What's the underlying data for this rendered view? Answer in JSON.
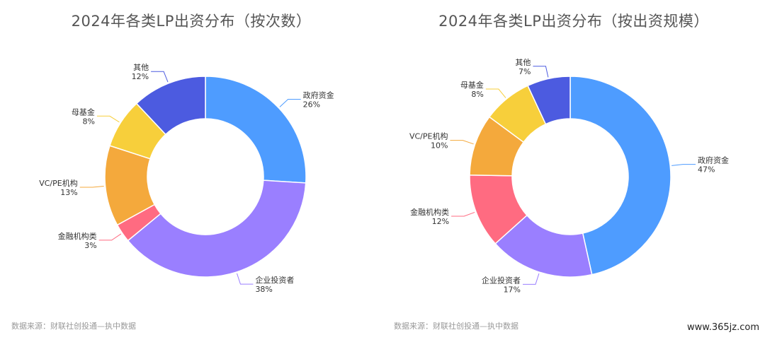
{
  "chart_data": [
    {
      "type": "pie",
      "title": "2024年各类LP出资分布（按次数）",
      "source": "数据来源：财联社创投通—执中数据",
      "slices": [
        {
          "name": "政府资金",
          "value": 26,
          "label": "26%",
          "color": "#4e9cff"
        },
        {
          "name": "企业投资者",
          "value": 38,
          "label": "38%",
          "color": "#9a7fff"
        },
        {
          "name": "金融机构类",
          "value": 3,
          "label": "3%",
          "color": "#ff6b81"
        },
        {
          "name": "VC/PE机构",
          "value": 13,
          "label": "13%",
          "color": "#f4a93c"
        },
        {
          "name": "母基金",
          "value": 8,
          "label": "8%",
          "color": "#f7cf3b"
        },
        {
          "name": "其他",
          "value": 12,
          "label": "12%",
          "color": "#4c5be0"
        }
      ]
    },
    {
      "type": "pie",
      "title": "2024年各类LP出资分布（按出资规模）",
      "source": "数据来源：财联社创投通—执中数据",
      "slices": [
        {
          "name": "政府资金",
          "value": 47,
          "label": "47%",
          "color": "#4e9cff"
        },
        {
          "name": "企业投资者",
          "value": 17,
          "label": "17%",
          "color": "#9a7fff"
        },
        {
          "name": "金融机构类",
          "value": 12,
          "label": "12%",
          "color": "#ff6b81"
        },
        {
          "name": "VC/PE机构",
          "value": 10,
          "label": "10%",
          "color": "#f4a93c"
        },
        {
          "name": "母基金",
          "value": 8,
          "label": "8%",
          "color": "#f7cf3b"
        },
        {
          "name": "其他",
          "value": 7,
          "label": "7%",
          "color": "#4c5be0"
        }
      ]
    }
  ],
  "watermark": "www.365jz.com"
}
